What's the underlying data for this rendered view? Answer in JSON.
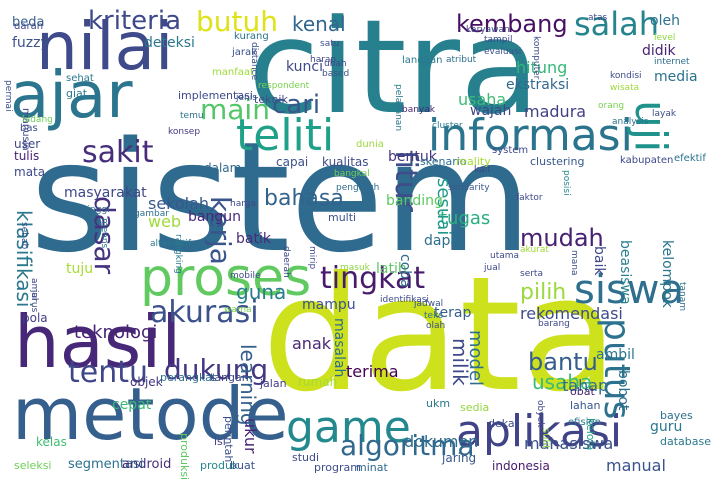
{
  "words": [
    {
      "text": "sistem",
      "color": "#2f6b8e"
    },
    {
      "text": "data",
      "color": "#cde11d"
    },
    {
      "text": "citra",
      "color": "#27808e"
    },
    {
      "text": "metode",
      "color": "#355f8d"
    },
    {
      "text": "hasil",
      "color": "#472878"
    },
    {
      "text": "ajar",
      "color": "#2b758e"
    },
    {
      "text": "nilai",
      "color": "#3e4a89"
    },
    {
      "text": "proses",
      "color": "#60ca60"
    },
    {
      "text": "aplikasi",
      "color": "#404387"
    },
    {
      "text": "teliti",
      "color": "#1fa088"
    },
    {
      "text": "informasi",
      "color": "#2b748e"
    },
    {
      "text": "game",
      "color": "#23898e"
    },
    {
      "text": "tingkat",
      "color": "#481b6d"
    },
    {
      "text": "siswa",
      "color": "#2e6e8e"
    },
    {
      "text": "akurasi",
      "color": "#3b528b"
    },
    {
      "text": "tentu",
      "color": "#3f4788"
    },
    {
      "text": "sakit",
      "color": "#472d7b"
    },
    {
      "text": "kriteria",
      "color": "#3e4989"
    },
    {
      "text": "butuh",
      "color": "#dde318"
    },
    {
      "text": "salah",
      "color": "#25848e"
    },
    {
      "text": "kembang",
      "color": "#471063"
    },
    {
      "text": "fitur",
      "color": "#3d4e8a"
    },
    {
      "text": "uji",
      "color": "#20928c"
    },
    {
      "text": "putus",
      "color": "#2c728e"
    },
    {
      "text": "main",
      "color": "#54c568"
    },
    {
      "text": "cari",
      "color": "#38588c"
    },
    {
      "text": "kenal",
      "color": "#31668e"
    },
    {
      "text": "dasar",
      "color": "#46337f"
    },
    {
      "text": "kerja",
      "color": "#3a548c"
    },
    {
      "text": "bahasa",
      "color": "#33638d"
    },
    {
      "text": "dukung",
      "color": "#453882"
    },
    {
      "text": "algoritma",
      "color": "#31688e"
    },
    {
      "text": "mudah",
      "color": "#482071"
    },
    {
      "text": "bantu",
      "color": "#355e8d"
    },
    {
      "text": "learning",
      "color": "#34608d"
    },
    {
      "text": "pilih",
      "color": "#9bd93c"
    },
    {
      "text": "guna",
      "color": "#287d8e"
    },
    {
      "text": "klasifikasi",
      "color": "#2a788e"
    },
    {
      "text": "usaha",
      "color": "#3bbb75"
    },
    {
      "text": "milik",
      "color": "#3f4889"
    },
    {
      "text": "model",
      "color": "#2e6f8e"
    },
    {
      "text": "rekomendasi",
      "color": "#3e4c8a"
    },
    {
      "text": "mahasiswa",
      "color": "#3b518b"
    },
    {
      "text": "ukur",
      "color": "#482576"
    },
    {
      "text": "tugas",
      "color": "#29af7f"
    },
    {
      "text": "sesuai",
      "color": "#1f998a"
    },
    {
      "text": "teknologi",
      "color": "#482374"
    },
    {
      "text": "dokumen",
      "color": "#2f6c8e"
    },
    {
      "text": "manual",
      "color": "#3a538b"
    },
    {
      "text": "terima",
      "color": "#440154"
    },
    {
      "text": "anak",
      "color": "#482878"
    },
    {
      "text": "tahap",
      "color": "#2d708e"
    },
    {
      "text": "guru",
      "color": "#2a778e"
    },
    {
      "text": "usaha",
      "color": "#3bbb75"
    },
    {
      "text": "wajah",
      "color": "#3f4788"
    },
    {
      "text": "madura",
      "color": "#423f85"
    },
    {
      "text": "hitung",
      "color": "#35b779"
    },
    {
      "text": "ekstraksi",
      "color": "#31688e"
    },
    {
      "text": "didik",
      "color": "#482374"
    },
    {
      "text": "media",
      "color": "#2c728e"
    },
    {
      "text": "oleh",
      "color": "#2c718e"
    },
    {
      "text": "fuzzy",
      "color": "#3b528b"
    },
    {
      "text": "deteksi",
      "color": "#2a788e"
    },
    {
      "text": "kunci",
      "color": "#3e4a89"
    },
    {
      "text": "beda",
      "color": "#34618d"
    },
    {
      "text": "bentuk",
      "color": "#453781"
    },
    {
      "text": "latih",
      "color": "#5ec962"
    },
    {
      "text": "coba",
      "color": "#2f6c8e"
    },
    {
      "text": "banding",
      "color": "#5cc863"
    },
    {
      "text": "dapat",
      "color": "#2e6e8e"
    },
    {
      "text": "baik",
      "color": "#3e4989"
    },
    {
      "text": "beasiswa",
      "color": "#27808e"
    },
    {
      "text": "kelompok",
      "color": "#2a768e"
    },
    {
      "text": "sekolah",
      "color": "#38588c"
    },
    {
      "text": "web",
      "color": "#9fda3a"
    },
    {
      "text": "tuju",
      "color": "#a8db34"
    },
    {
      "text": "batik",
      "color": "#472c7a"
    },
    {
      "text": "bangun",
      "color": "#482979"
    },
    {
      "text": "masyarakat",
      "color": "#3f4889"
    },
    {
      "text": "mampu",
      "color": "#3b528b"
    },
    {
      "text": "terap",
      "color": "#34618d"
    },
    {
      "text": "ambil",
      "color": "#2a768e"
    },
    {
      "text": "bobot",
      "color": "#2d708e"
    },
    {
      "text": "cepat",
      "color": "#3aba76"
    },
    {
      "text": "masalah",
      "color": "#2e6d8e"
    },
    {
      "text": "segmentasi",
      "color": "#2c718e"
    },
    {
      "text": "android",
      "color": "#472f7d"
    },
    {
      "text": "indonesia",
      "color": "#481a6c"
    },
    {
      "text": "jaring",
      "color": "#38588c"
    },
    {
      "text": "kelas",
      "color": "#3fbc73"
    },
    {
      "text": "seleksi",
      "color": "#70cf57"
    },
    {
      "text": "produk",
      "color": "#24878e"
    },
    {
      "text": "buat",
      "color": "#3b528b"
    },
    {
      "text": "studi",
      "color": "#3e4a89"
    },
    {
      "text": "program",
      "color": "#3d4d8a"
    },
    {
      "text": "minat",
      "color": "#30698e"
    },
    {
      "text": "database",
      "color": "#2a788e"
    },
    {
      "text": "bayes",
      "color": "#2d708e"
    },
    {
      "text": "kelola",
      "color": "#1f9e89"
    },
    {
      "text": "efisien",
      "color": "#2a788e"
    },
    {
      "text": "lahan",
      "color": "#38588c"
    },
    {
      "text": "obat",
      "color": "#482576"
    },
    {
      "text": "ukm",
      "color": "#2a788e"
    },
    {
      "text": "sedia",
      "color": "#93d741"
    },
    {
      "text": "dekat",
      "color": "#3e4c8a"
    },
    {
      "text": "sulit",
      "color": "#90d743"
    },
    {
      "text": "produksi",
      "color": "#5ec962"
    },
    {
      "text": "isi",
      "color": "#433e85"
    },
    {
      "text": "perintah",
      "color": "#3b528b"
    },
    {
      "text": "rumah",
      "color": "#a5db36"
    },
    {
      "text": "jalan",
      "color": "#433e85"
    },
    {
      "text": "tangan",
      "color": "#3f4788"
    },
    {
      "text": "perangkat",
      "color": "#2e6f8e"
    },
    {
      "text": "objek",
      "color": "#453882"
    },
    {
      "text": "pola",
      "color": "#433e85"
    },
    {
      "text": "mata",
      "color": "#3e4a89"
    },
    {
      "text": "tulis",
      "color": "#482172"
    },
    {
      "text": "user",
      "color": "#3e4989"
    },
    {
      "text": "bas",
      "color": "#3d4e8a"
    },
    {
      "text": "dalam",
      "color": "#31688e"
    },
    {
      "text": "capai",
      "color": "#3b528b"
    },
    {
      "text": "kualitas",
      "color": "#3e4c8a"
    },
    {
      "text": "skenario",
      "color": "#2c728e"
    },
    {
      "text": "reality",
      "color": "#a5db36"
    },
    {
      "text": "clustering",
      "color": "#38588c"
    },
    {
      "text": "kabupaten",
      "color": "#3e4989"
    },
    {
      "text": "efektif",
      "color": "#2c728e"
    },
    {
      "text": "giat",
      "color": "#2a788e"
    },
    {
      "text": "implementasi",
      "color": "#3e4a89"
    },
    {
      "text": "teknik",
      "color": "#3e4c8a"
    },
    {
      "text": "manfaat",
      "color": "#a0da39"
    },
    {
      "text": "jarak",
      "color": "#3b528b"
    },
    {
      "text": "darah",
      "color": "#3f4889"
    },
    {
      "text": "sehat",
      "color": "#2a788e"
    },
    {
      "text": "permai",
      "color": "#3b528b"
    },
    {
      "text": "manusia",
      "color": "#3e4989"
    },
    {
      "text": "bidang",
      "color": "#6ccd5a"
    },
    {
      "text": "temu",
      "color": "#2c728e"
    },
    {
      "text": "konsep",
      "color": "#453882"
    },
    {
      "text": "gambar",
      "color": "#2e6e8e"
    },
    {
      "text": "tinggi",
      "color": "#30698e"
    },
    {
      "text": "means",
      "color": "#2c728e"
    },
    {
      "text": "rangking",
      "color": "#2a788e"
    },
    {
      "text": "pengaruh",
      "color": "#2f6c8e"
    },
    {
      "text": "faktor",
      "color": "#3e4a89"
    },
    {
      "text": "posisi",
      "color": "#23898e"
    },
    {
      "text": "similarity",
      "color": "#38588c"
    },
    {
      "text": "kait",
      "color": "#3f4788"
    },
    {
      "text": "dunia",
      "color": "#9bd93c"
    },
    {
      "text": "system",
      "color": "#3e4a89"
    },
    {
      "text": "cluster",
      "color": "#2a788e"
    },
    {
      "text": "analysis",
      "color": "#2c728e"
    },
    {
      "text": "orang",
      "color": "#7ad151"
    },
    {
      "text": "layak",
      "color": "#3e4c8a"
    },
    {
      "text": "internet",
      "color": "#2e6e8e"
    },
    {
      "text": "level",
      "color": "#8fd744"
    },
    {
      "text": "kondisi",
      "color": "#3e4989"
    },
    {
      "text": "wisata",
      "color": "#9fda3a"
    },
    {
      "text": "atas",
      "color": "#3e4a89"
    },
    {
      "text": "karyawan",
      "color": "#3e4989"
    },
    {
      "text": "tampil",
      "color": "#3f4889"
    },
    {
      "text": "evaluasi",
      "color": "#3b528b"
    },
    {
      "text": "atribut",
      "color": "#2e6f8e"
    },
    {
      "text": "komputer",
      "color": "#3e4a89"
    },
    {
      "text": "langgan",
      "color": "#2a788e"
    },
    {
      "text": "based",
      "color": "#3b528b"
    },
    {
      "text": "harap",
      "color": "#3f4788"
    },
    {
      "text": "kurang",
      "color": "#2c728e"
    },
    {
      "text": "distance",
      "color": "#3b528b"
    },
    {
      "text": "respondent",
      "color": "#7ad151"
    },
    {
      "text": "satu",
      "color": "#3e4c8a"
    },
    {
      "text": "ubah",
      "color": "#3e4a89"
    },
    {
      "text": "jenis",
      "color": "#3b528b"
    },
    {
      "text": "banyak",
      "color": "#482576"
    },
    {
      "text": "pelayanan",
      "color": "#2a788e"
    },
    {
      "text": "bangkal",
      "color": "#6ccd5a"
    },
    {
      "text": "harga",
      "color": "#3e4a89"
    },
    {
      "text": "multi",
      "color": "#3b528b"
    },
    {
      "text": "daerah",
      "color": "#3f4788"
    },
    {
      "text": "mirip",
      "color": "#3e4c8a"
    },
    {
      "text": "masuk",
      "color": "#8fd744"
    },
    {
      "text": "akurat",
      "color": "#a0da39"
    },
    {
      "text": "utama",
      "color": "#3e4a89"
    },
    {
      "text": "serta",
      "color": "#3e4989"
    },
    {
      "text": "jual",
      "color": "#3f4889"
    },
    {
      "text": "mana",
      "color": "#3b528b"
    },
    {
      "text": "tanam",
      "color": "#2e6e8e"
    },
    {
      "text": "identifikasi",
      "color": "#3e4a89"
    },
    {
      "text": "jadwal",
      "color": "#3b528b"
    },
    {
      "text": "teks",
      "color": "#2e6f8e"
    },
    {
      "text": "barang",
      "color": "#3e4989"
    },
    {
      "text": "olah",
      "color": "#3e4c8a"
    },
    {
      "text": "warna",
      "color": "#7ad151"
    },
    {
      "text": "mobile",
      "color": "#3e4a89"
    },
    {
      "text": "alternatif",
      "color": "#2a788e"
    },
    {
      "text": "sebab",
      "color": "#3b528b"
    },
    {
      "text": "amal",
      "color": "#3f4788"
    },
    {
      "text": "jurus",
      "color": "#3e4a89"
    },
    {
      "text": "obyek",
      "color": "#3e4989"
    },
    {
      "text": "akademik",
      "color": "#8fd744"
    }
  ]
}
